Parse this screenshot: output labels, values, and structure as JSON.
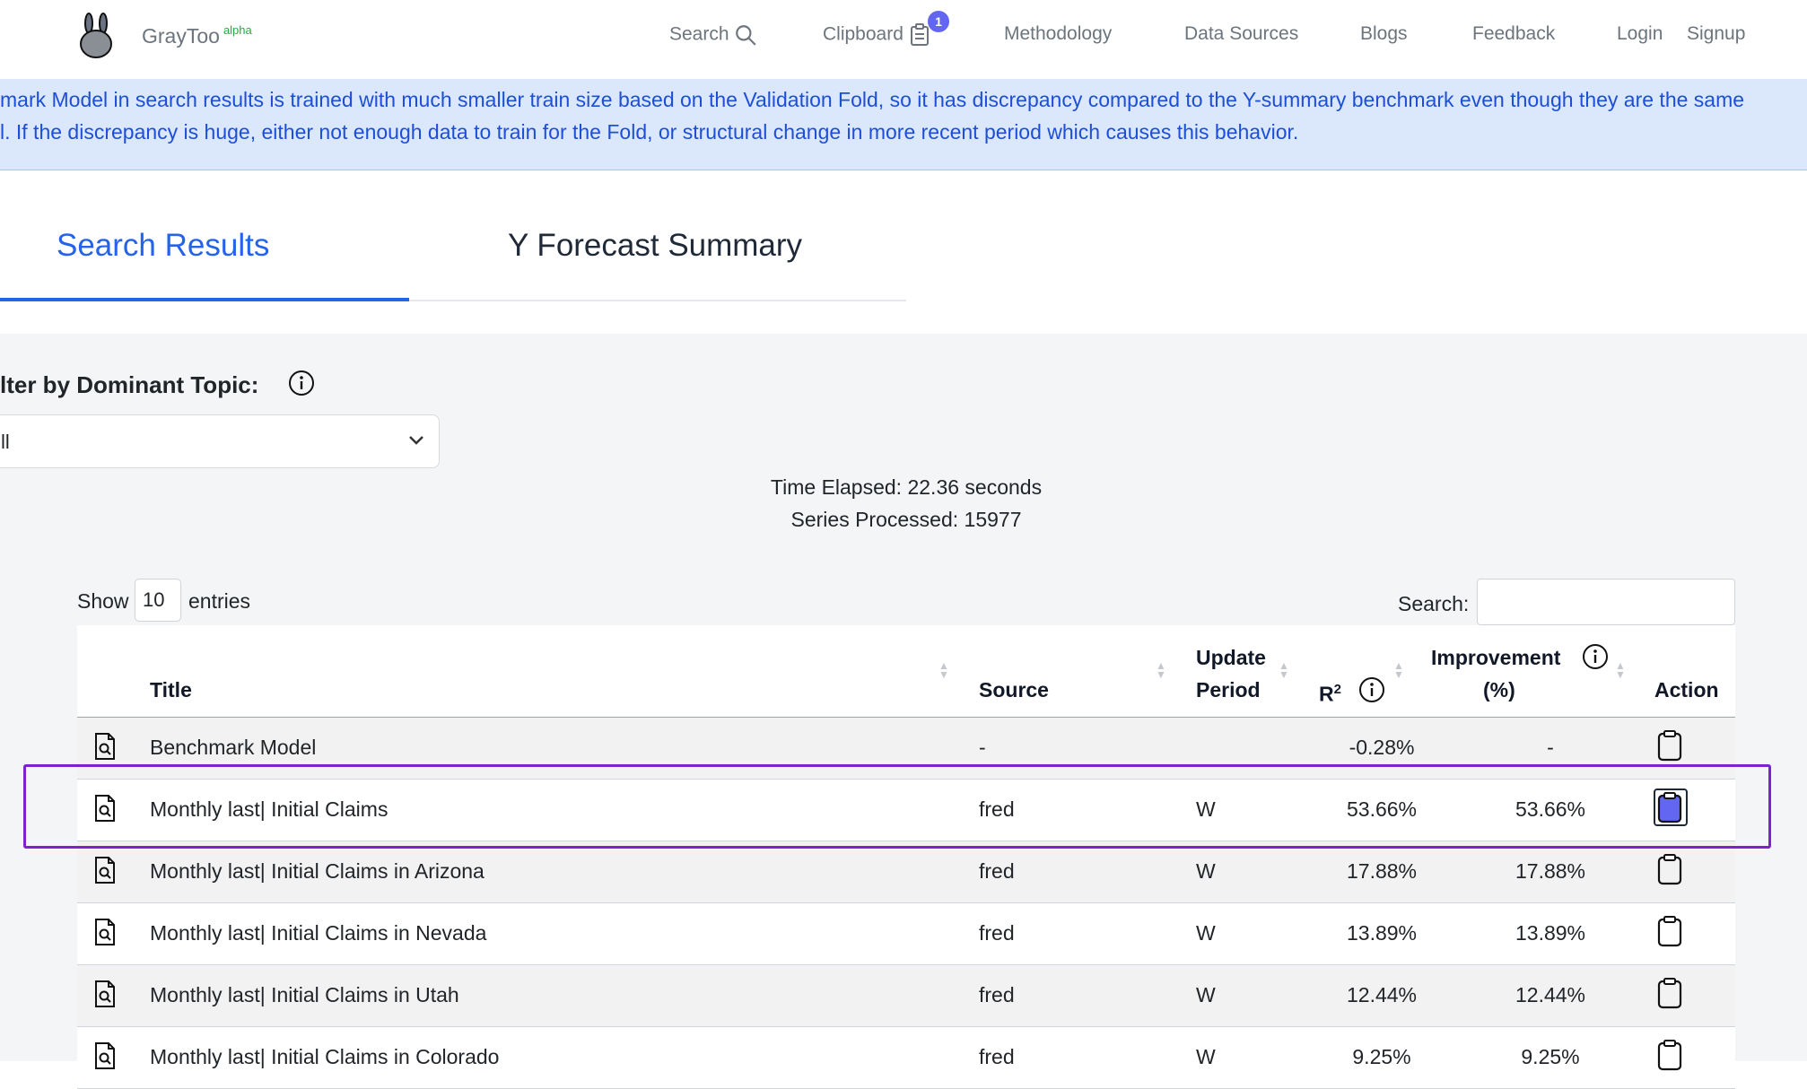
{
  "nav": {
    "brand": "GrayToo",
    "brand_tag": "alpha",
    "search": "Search",
    "clipboard": "Clipboard",
    "clipboard_count": "1",
    "methodology": "Methodology",
    "data_sources": "Data Sources",
    "blogs": "Blogs",
    "feedback": "Feedback",
    "login": "Login",
    "signup": "Signup"
  },
  "alert": {
    "line1": "mark Model in search results is trained with much smaller train size based on the Validation Fold, so it has discrepancy compared to the Y-summary benchmark even though they are the same",
    "line2": "l. If the discrepancy is huge, either not enough data to train for the Fold, or structural change in more recent period which causes this behavior."
  },
  "tabs": {
    "search_results": "Search Results",
    "y_forecast_summary": "Y Forecast Summary"
  },
  "filter": {
    "label": "lter by Dominant Topic:",
    "selected": "ll"
  },
  "stats": {
    "time_elapsed": "Time Elapsed: 22.36 seconds",
    "series_processed": "Series Processed: 15977"
  },
  "table_controls": {
    "show": "Show",
    "entries_value": "10",
    "entries": "entries",
    "search_label": "Search:"
  },
  "table": {
    "headers": {
      "title": "Title",
      "source": "Source",
      "update_line1": "Update",
      "update_line2": "Period",
      "r2": "R",
      "r2_sup": "2",
      "improvement_line1": "Improvement",
      "improvement_line2": "(%)",
      "action": "Action"
    },
    "rows": [
      {
        "title": "Benchmark Model",
        "source": "-",
        "period": "",
        "r2": "-0.28%",
        "improvement": "-",
        "selected": false
      },
      {
        "title": "Monthly last| Initial Claims",
        "source": "fred",
        "period": "W",
        "r2": "53.66%",
        "improvement": "53.66%",
        "selected": true
      },
      {
        "title": "Monthly last| Initial Claims in Arizona",
        "source": "fred",
        "period": "W",
        "r2": "17.88%",
        "improvement": "17.88%",
        "selected": false
      },
      {
        "title": "Monthly last| Initial Claims in Nevada",
        "source": "fred",
        "period": "W",
        "r2": "13.89%",
        "improvement": "13.89%",
        "selected": false
      },
      {
        "title": "Monthly last| Initial Claims in Utah",
        "source": "fred",
        "period": "W",
        "r2": "12.44%",
        "improvement": "12.44%",
        "selected": false
      },
      {
        "title": "Monthly last| Initial Claims in Colorado",
        "source": "fred",
        "period": "W",
        "r2": "9.25%",
        "improvement": "9.25%",
        "selected": false
      }
    ]
  },
  "colors": {
    "accent": "#2563eb",
    "alert_bg": "#dbe8fb",
    "highlight": "#7e22ce",
    "clipboard_active": "#6366f1"
  }
}
